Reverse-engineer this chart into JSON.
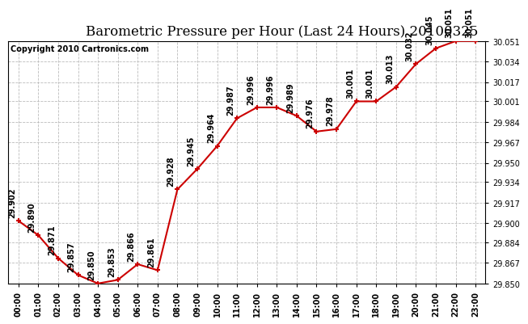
{
  "title": "Barometric Pressure per Hour (Last 24 Hours) 20100325",
  "copyright": "Copyright 2010 Cartronics.com",
  "hours": [
    "00:00",
    "01:00",
    "02:00",
    "03:00",
    "04:00",
    "05:00",
    "06:00",
    "07:00",
    "08:00",
    "09:00",
    "10:00",
    "11:00",
    "12:00",
    "13:00",
    "14:00",
    "15:00",
    "16:00",
    "17:00",
    "18:00",
    "19:00",
    "20:00",
    "21:00",
    "22:00",
    "23:00"
  ],
  "values": [
    29.902,
    29.89,
    29.871,
    29.857,
    29.85,
    29.853,
    29.866,
    29.861,
    29.928,
    29.945,
    29.964,
    29.987,
    29.996,
    29.996,
    29.989,
    29.976,
    29.978,
    30.001,
    30.001,
    30.013,
    30.032,
    30.045,
    30.051,
    30.051
  ],
  "ylim_min": 29.85,
  "ylim_max": 30.051,
  "yticks": [
    29.85,
    29.867,
    29.884,
    29.9,
    29.917,
    29.934,
    29.95,
    29.967,
    29.984,
    30.001,
    30.017,
    30.034,
    30.051
  ],
  "line_color": "#cc0000",
  "marker_color": "#cc0000",
  "bg_color": "#ffffff",
  "grid_color": "#bbbbbb",
  "title_fontsize": 12,
  "annot_fontsize": 7,
  "label_fontsize": 7,
  "copyright_fontsize": 7
}
